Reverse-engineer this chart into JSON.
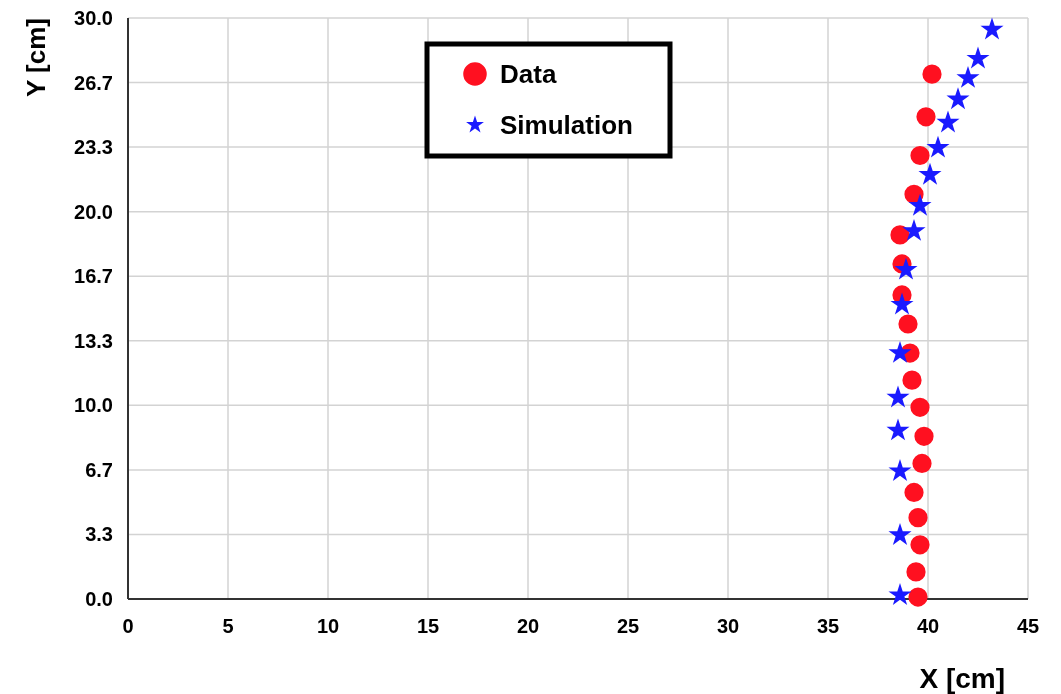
{
  "chart_data": {
    "type": "scatter",
    "xlabel": "X [cm]",
    "ylabel": "Y [cm]",
    "xlim": [
      0,
      45
    ],
    "ylim": [
      0,
      30
    ],
    "xticks": [
      0,
      5,
      10,
      15,
      20,
      25,
      30,
      35,
      40,
      45
    ],
    "yticks": [
      {
        "value": 0,
        "label": "0.0"
      },
      {
        "value": 3.333,
        "label": "3.3"
      },
      {
        "value": 6.667,
        "label": "6.7"
      },
      {
        "value": 10,
        "label": "10.0"
      },
      {
        "value": 13.333,
        "label": "13.3"
      },
      {
        "value": 16.667,
        "label": "16.7"
      },
      {
        "value": 20,
        "label": "20.0"
      },
      {
        "value": 23.333,
        "label": "23.3"
      },
      {
        "value": 26.667,
        "label": "26.7"
      },
      {
        "value": 30,
        "label": "30.0"
      }
    ],
    "grid": true,
    "legend": "top",
    "series": [
      {
        "name": "Data",
        "color": "#ff1020",
        "marker": "circle",
        "x": [
          39.5,
          39.4,
          39.6,
          39.5,
          39.3,
          39.7,
          39.8,
          39.6,
          39.2,
          39.1,
          39.0,
          38.7,
          38.7,
          38.6,
          39.3,
          39.6,
          39.9,
          40.2
        ],
        "values": [
          0.1,
          1.4,
          2.8,
          4.2,
          5.5,
          7.0,
          8.4,
          9.9,
          11.3,
          12.7,
          14.2,
          15.7,
          17.3,
          18.8,
          20.9,
          22.9,
          24.9,
          27.1
        ]
      },
      {
        "name": "Simulation",
        "color": "#1a1aff",
        "marker": "star",
        "x": [
          38.6,
          38.6,
          38.6,
          38.5,
          38.5,
          38.6,
          38.7,
          38.9,
          39.3,
          39.6,
          40.1,
          40.5,
          41.0,
          41.5,
          42.0,
          42.5,
          43.2
        ],
        "values": [
          0.2,
          3.3,
          6.6,
          8.7,
          10.4,
          12.7,
          15.2,
          17.0,
          19.0,
          20.3,
          21.9,
          23.3,
          24.6,
          25.8,
          26.9,
          27.9,
          29.4
        ]
      }
    ]
  }
}
